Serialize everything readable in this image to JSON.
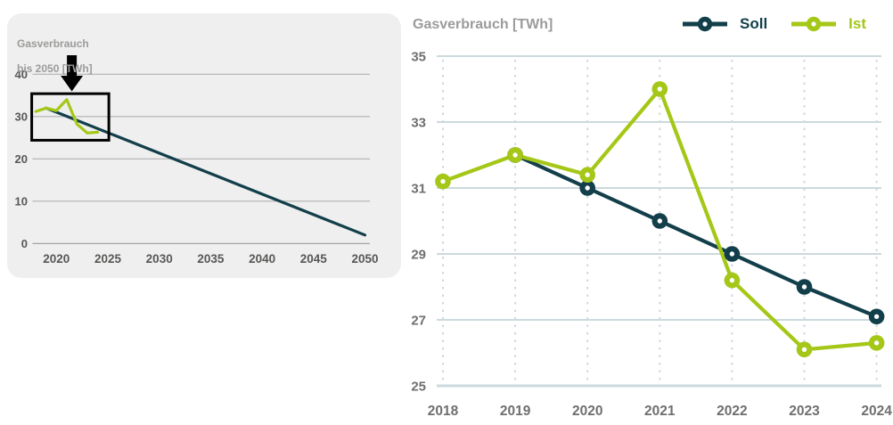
{
  "colors": {
    "soll": "#123f4a",
    "ist": "#a5c717",
    "title_gray": "#9b9b9a",
    "right_axis_label": "#706f6f",
    "right_grid": "#ccd9dd",
    "left_axis_label": "#575756",
    "left_grid": "#b2b1b1",
    "left_axis_line": "#9a9a9a",
    "panel_bg": "#efefef",
    "annotation_black": "#000000",
    "marker_hole": "#ffffff"
  },
  "chart_data": [
    {
      "id": "overview",
      "type": "line",
      "title": "Gasverbrauch bis 2050 [TWh]",
      "title_lines": [
        "Gasverbrauch",
        "bis 2050 [TWh]"
      ],
      "x_ticks": [
        2020,
        2025,
        2030,
        2035,
        2040,
        2045,
        2050
      ],
      "y_ticks": [
        0,
        10,
        20,
        30,
        40
      ],
      "xlim": [
        2017.5,
        2050.5
      ],
      "ylim": [
        0,
        42
      ],
      "grid": "horizontal",
      "legend_position": "none",
      "series": [
        {
          "name": "Soll",
          "color": "#123f4a",
          "markers": false,
          "x": [
            2019,
            2050
          ],
          "values": [
            32,
            2
          ]
        },
        {
          "name": "Ist",
          "color": "#a5c717",
          "markers": false,
          "x": [
            2018,
            2019,
            2020,
            2021,
            2022,
            2023,
            2024
          ],
          "values": [
            31.2,
            32.0,
            31.4,
            34.0,
            28.2,
            26.1,
            26.3
          ]
        }
      ],
      "annotations": {
        "highlight_box": {
          "x0": 2017.6,
          "x1": 2025.1,
          "y0": 24.4,
          "y1": 35.4
        },
        "arrow": {
          "x": 2021.5,
          "direction": "down",
          "points_to": "highlight_box"
        }
      }
    },
    {
      "id": "detail",
      "type": "line",
      "title": "Gasverbrauch [TWh]",
      "x_ticks": [
        2018,
        2019,
        2020,
        2021,
        2022,
        2023,
        2024
      ],
      "y_ticks": [
        25,
        27,
        29,
        31,
        33,
        35
      ],
      "xlim": [
        2018,
        2024
      ],
      "ylim": [
        25,
        35
      ],
      "grid": "both",
      "legend_position": "top-right",
      "legend": [
        "Soll",
        "Ist"
      ],
      "series": [
        {
          "name": "Soll",
          "color": "#123f4a",
          "markers": true,
          "x": [
            2019,
            2020,
            2021,
            2022,
            2023,
            2024
          ],
          "values": [
            32.0,
            31.0,
            30.0,
            29.0,
            28.0,
            27.1
          ]
        },
        {
          "name": "Ist",
          "color": "#a5c717",
          "markers": true,
          "x": [
            2018,
            2019,
            2020,
            2021,
            2022,
            2023,
            2024
          ],
          "values": [
            31.2,
            32.0,
            31.4,
            34.0,
            28.2,
            26.1,
            26.3
          ]
        }
      ]
    }
  ]
}
